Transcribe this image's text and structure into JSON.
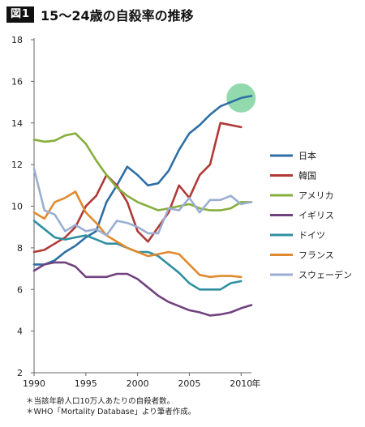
{
  "header": {
    "figure_label": "図1",
    "title": "15〜24歳の自殺率の推移"
  },
  "notes": [
    "＊当該年齢人口10万人あたりの自殺者数。",
    "＊WHO「Mortality Database」より筆者作成。"
  ],
  "chart_data": {
    "type": "line",
    "title": "15〜24歳の自殺率の推移",
    "xlabel": "",
    "ylabel": "",
    "x_unit_label": "年",
    "xlim": [
      1990,
      2011
    ],
    "ylim": [
      2,
      18
    ],
    "x_ticks": [
      1990,
      1995,
      2000,
      2005,
      2010
    ],
    "y_ticks": [
      2,
      4,
      6,
      8,
      10,
      12,
      14,
      16,
      18
    ],
    "grid": false,
    "legend_position": "right",
    "highlight": {
      "x": 2010,
      "y": 15.2,
      "color": "#7fd3a0"
    },
    "x": [
      1990,
      1991,
      1992,
      1993,
      1994,
      1995,
      1996,
      1997,
      1998,
      1999,
      2000,
      2001,
      2002,
      2003,
      2004,
      2005,
      2006,
      2007,
      2008,
      2009,
      2010,
      2011
    ],
    "series": [
      {
        "name": "日本",
        "color": "#2e6fa5",
        "values": [
          7.2,
          7.2,
          7.4,
          7.8,
          8.1,
          8.5,
          8.8,
          10.2,
          11.0,
          11.9,
          11.5,
          11.0,
          11.1,
          11.7,
          12.7,
          13.5,
          13.9,
          14.4,
          14.8,
          15.0,
          15.2,
          15.3
        ]
      },
      {
        "name": "韓国",
        "color": "#b03a36",
        "values": [
          7.8,
          7.9,
          8.2,
          8.5,
          9.0,
          10.0,
          10.5,
          11.5,
          11.0,
          10.2,
          8.8,
          8.3,
          9.0,
          9.7,
          11.0,
          10.4,
          11.5,
          12.0,
          14.0,
          13.9,
          13.8,
          null
        ]
      },
      {
        "name": "アメリカ",
        "color": "#86ae3c",
        "values": [
          13.2,
          13.1,
          13.15,
          13.4,
          13.5,
          13.0,
          12.2,
          11.5,
          10.9,
          10.5,
          10.2,
          10.0,
          9.8,
          9.9,
          10.0,
          10.1,
          9.9,
          9.8,
          9.8,
          9.9,
          10.2,
          10.2
        ]
      },
      {
        "name": "イギリス",
        "color": "#71427f",
        "values": [
          6.9,
          7.2,
          7.3,
          7.3,
          7.1,
          6.6,
          6.6,
          6.6,
          6.75,
          6.75,
          6.5,
          6.1,
          5.7,
          5.4,
          5.2,
          5.0,
          4.9,
          4.75,
          4.8,
          4.9,
          5.1,
          5.25
        ]
      },
      {
        "name": "ドイツ",
        "color": "#2e8fa0",
        "values": [
          9.3,
          8.9,
          8.5,
          8.4,
          8.5,
          8.6,
          8.4,
          8.2,
          8.2,
          8.0,
          7.8,
          7.8,
          7.6,
          7.2,
          6.8,
          6.3,
          6.0,
          6.0,
          6.0,
          6.3,
          6.4,
          null
        ]
      },
      {
        "name": "フランス",
        "color": "#e08a2e",
        "values": [
          9.7,
          9.4,
          10.2,
          10.4,
          10.7,
          9.7,
          9.2,
          8.6,
          8.3,
          8.0,
          7.8,
          7.6,
          7.7,
          7.8,
          7.7,
          7.2,
          6.7,
          6.6,
          6.65,
          6.65,
          6.6,
          null
        ]
      },
      {
        "name": "スウェーデン",
        "color": "#9aaed3",
        "values": [
          11.8,
          9.8,
          9.6,
          8.8,
          9.1,
          8.8,
          8.9,
          8.6,
          9.3,
          9.2,
          9.0,
          8.7,
          8.7,
          9.9,
          9.8,
          10.4,
          9.7,
          10.3,
          10.3,
          10.5,
          10.1,
          10.2
        ]
      }
    ]
  }
}
